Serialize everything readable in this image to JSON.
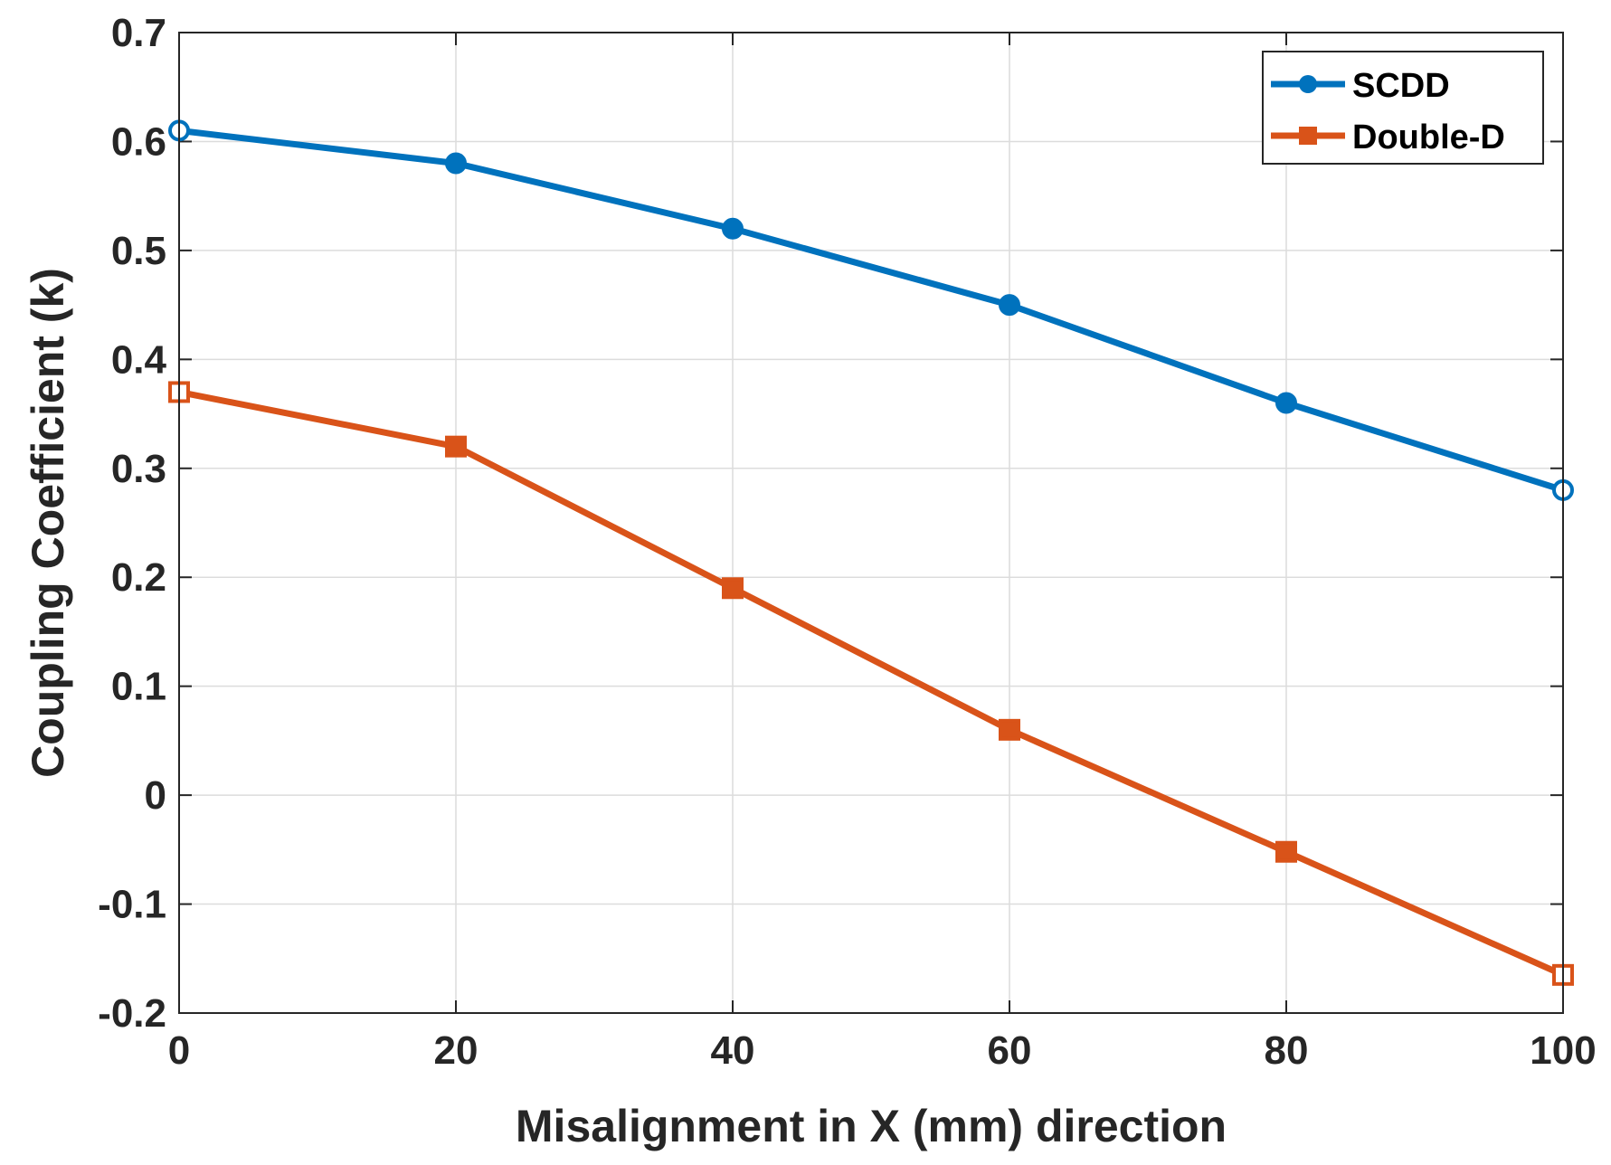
{
  "chart_data": {
    "type": "line",
    "title": "",
    "xlabel": "Misalignment in X (mm) direction",
    "ylabel": "Coupling Coefficient (k)",
    "x": [
      0,
      20,
      40,
      60,
      80,
      100
    ],
    "xlim": [
      0,
      100
    ],
    "ylim": [
      -0.2,
      0.7
    ],
    "x_ticks": [
      "0",
      "20",
      "40",
      "60",
      "80",
      "100"
    ],
    "y_ticks": [
      "0.7",
      "0.6",
      "0.5",
      "0.4",
      "0.3",
      "0.2",
      "0.1",
      "0",
      "-0.1",
      "-0.2"
    ],
    "y_tick_values": [
      0.7,
      0.6,
      0.5,
      0.4,
      0.3,
      0.2,
      0.1,
      0,
      -0.1,
      -0.2
    ],
    "grid": true,
    "legend_position": "top-right",
    "series": [
      {
        "name": "SCDD",
        "values": [
          0.61,
          0.58,
          0.52,
          0.45,
          0.36,
          0.28
        ],
        "color": "#0072BD",
        "marker": "circle"
      },
      {
        "name": "Double-D",
        "values": [
          0.37,
          0.32,
          0.19,
          0.06,
          -0.052,
          -0.165
        ],
        "color": "#D95319",
        "marker": "square"
      }
    ]
  }
}
